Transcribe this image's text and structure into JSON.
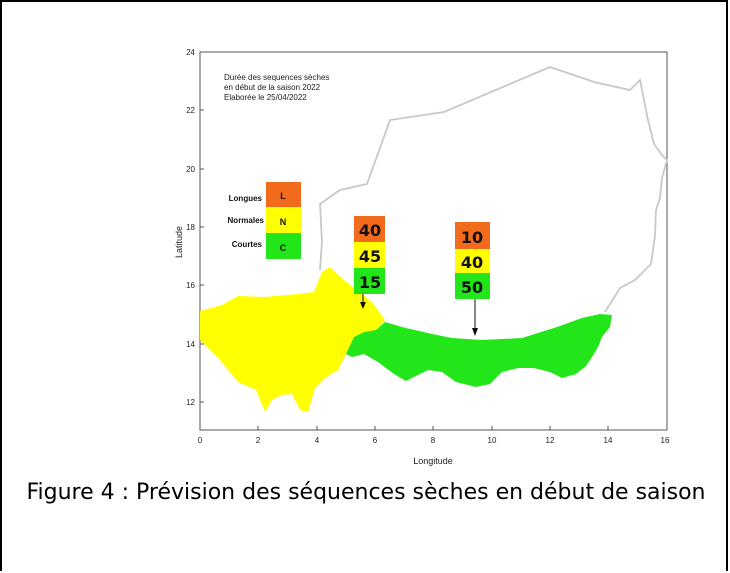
{
  "map": {
    "annotation_lines": [
      "Durée des sequences sèches",
      "en début de  la saison 2022",
      "Elaborée le 25/04/2022"
    ],
    "x_axis_label": "Longitude",
    "y_axis_label": "Latitude",
    "x_ticks": [
      "0",
      "2",
      "4",
      "6",
      "8",
      "10",
      "12",
      "14",
      "16"
    ],
    "y_ticks": [
      "12",
      "14",
      "16",
      "18",
      "20",
      "22",
      "24"
    ],
    "colors": {
      "longues": "#f26a1b",
      "normales": "#ffff00",
      "courtes": "#22e51a",
      "border": "#c8c8c8"
    },
    "legend": [
      {
        "label": "Longues",
        "code": "L"
      },
      {
        "label": "Normales",
        "code": "N"
      },
      {
        "label": "Courtes",
        "code": "C"
      }
    ],
    "zones": [
      {
        "name": "west",
        "fill": "normales",
        "probabilities": {
          "longues": "40",
          "normales": "45",
          "courtes": "15"
        }
      },
      {
        "name": "east",
        "fill": "courtes",
        "probabilities": {
          "longues": "10",
          "normales": "40",
          "courtes": "50"
        }
      }
    ]
  },
  "caption": {
    "text": "Figure 4 : Prévision des séquences sèches en début de saison"
  }
}
